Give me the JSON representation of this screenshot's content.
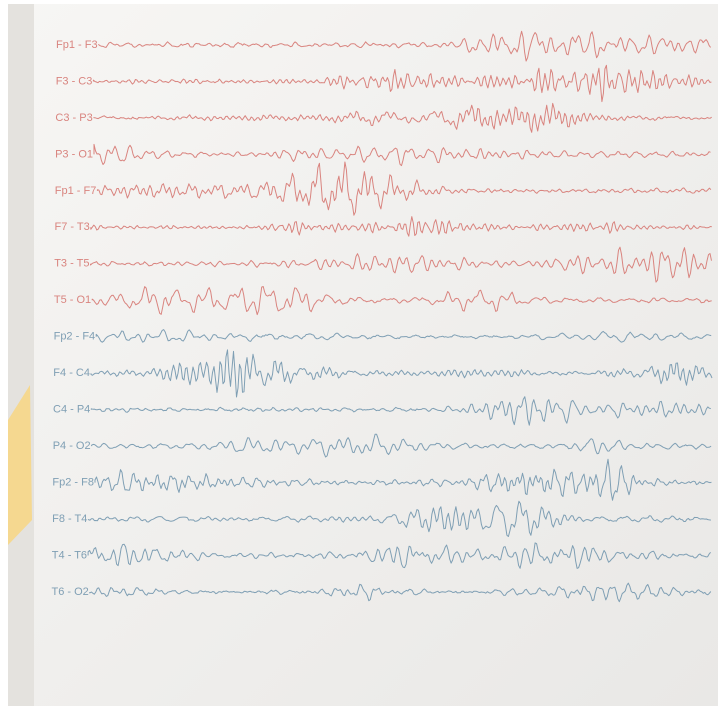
{
  "channels": [
    {
      "label": "Fp1 - F3",
      "color": "#d9847f"
    },
    {
      "label": "F3 - C3",
      "color": "#d9847f"
    },
    {
      "label": "C3 - P3",
      "color": "#d9847f"
    },
    {
      "label": "P3 - O1",
      "color": "#d9847f"
    },
    {
      "label": "Fp1 - F7",
      "color": "#d9847f"
    },
    {
      "label": "F7 - T3",
      "color": "#d9847f"
    },
    {
      "label": "T3 - T5",
      "color": "#d9847f"
    },
    {
      "label": "T5 - O1",
      "color": "#d9847f"
    },
    {
      "label": "Fp2 - F4",
      "color": "#7f9fb4"
    },
    {
      "label": "F4 - C4",
      "color": "#7f9fb4"
    },
    {
      "label": "C4 - P4",
      "color": "#7f9fb4"
    },
    {
      "label": "P4 - O2",
      "color": "#7f9fb4"
    },
    {
      "label": "Fp2 - F8",
      "color": "#7f9fb4"
    },
    {
      "label": "F8 - T4",
      "color": "#7f9fb4"
    },
    {
      "label": "T4 - T6",
      "color": "#7f9fb4"
    },
    {
      "label": "T6 - O2",
      "color": "#7f9fb4"
    }
  ]
}
